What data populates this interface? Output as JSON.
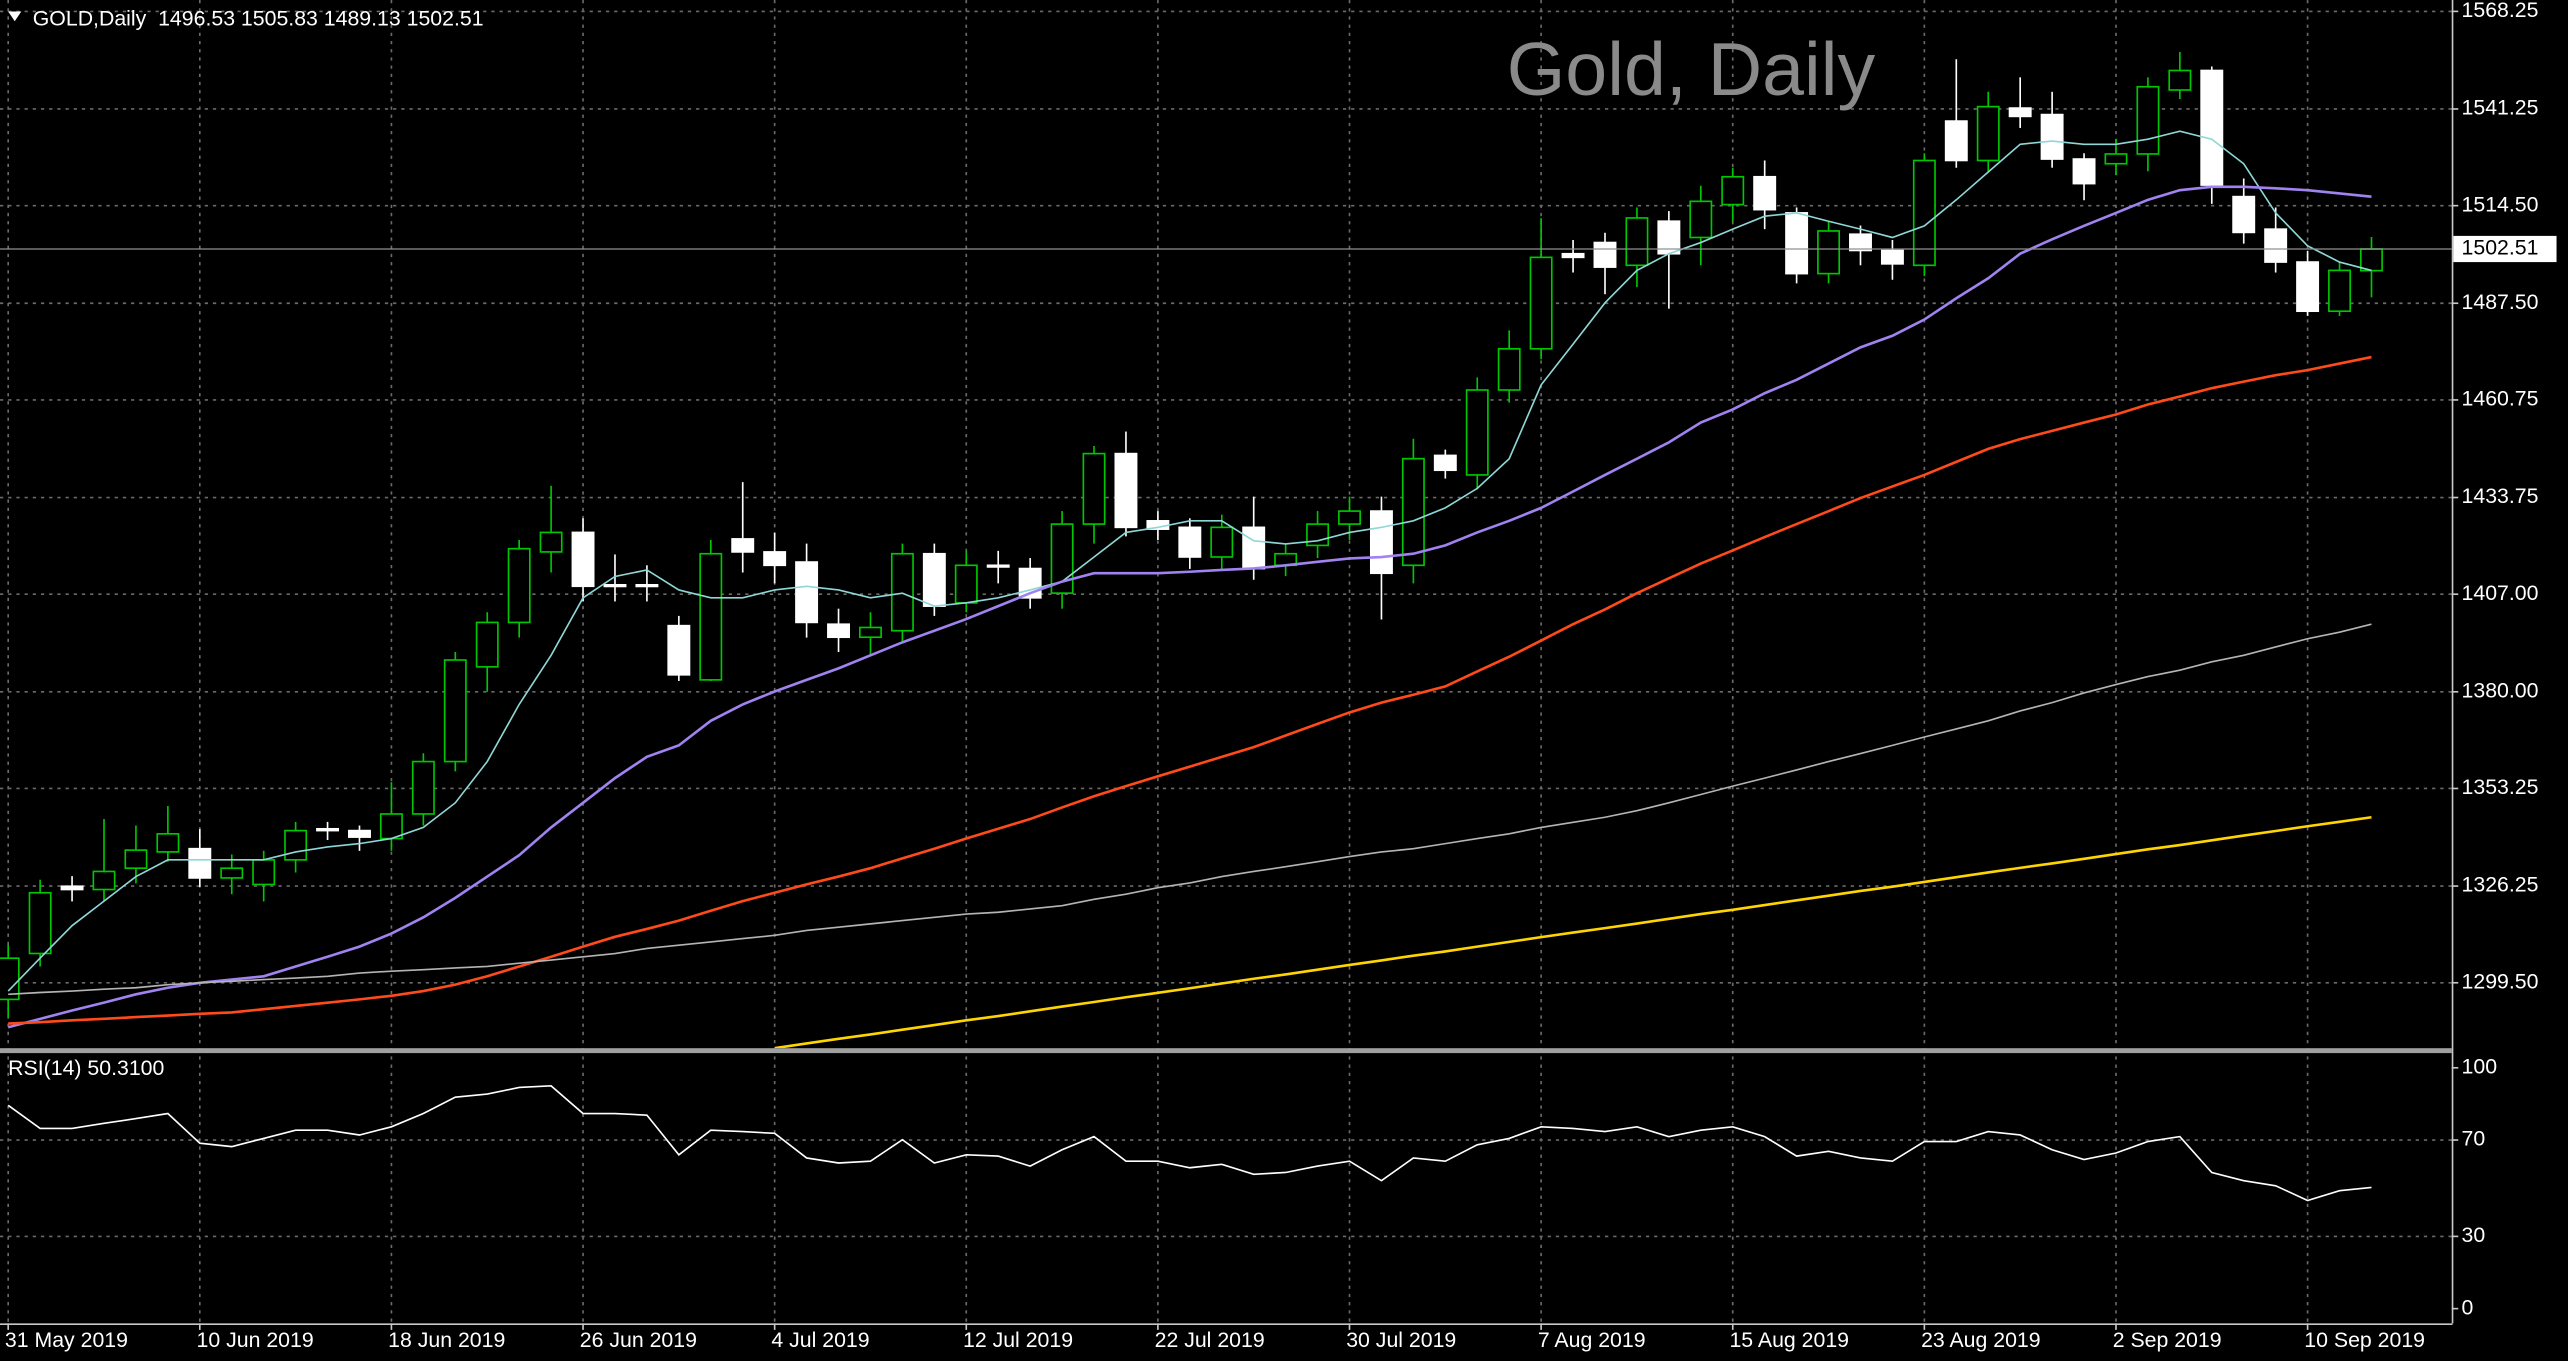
{
  "chart_data": {
    "type": "candlestick",
    "title": "Gold, Daily",
    "header": "GOLD,Daily  1496.53 1505.83 1489.13 1502.51",
    "categories": [
      "31 May 2019",
      null,
      null,
      null,
      null,
      null,
      "10 Jun 2019",
      null,
      null,
      null,
      null,
      null,
      "18 Jun 2019",
      null,
      null,
      null,
      null,
      null,
      "26 Jun 2019",
      null,
      null,
      null,
      null,
      null,
      "4 Jul 2019",
      null,
      null,
      null,
      null,
      null,
      "12 Jul 2019",
      null,
      null,
      null,
      null,
      null,
      "22 Jul 2019",
      null,
      null,
      null,
      null,
      null,
      "30 Jul 2019",
      null,
      null,
      null,
      null,
      null,
      "7 Aug 2019",
      null,
      null,
      null,
      null,
      null,
      "15 Aug 2019",
      null,
      null,
      null,
      null,
      null,
      "23 Aug 2019",
      null,
      null,
      null,
      null,
      null,
      "2 Sep 2019",
      null,
      null,
      null,
      null,
      null,
      "10 Sep 2019",
      null,
      null
    ],
    "open": [
      1294.9,
      1307.6,
      1326.2,
      1325.3,
      1331.2,
      1335.7,
      1336.6,
      1328.5,
      1326.7,
      1333.5,
      1342.1,
      1341.6,
      1339.4,
      1346.2,
      1360.7,
      1386.9,
      1399.2,
      1418.7,
      1424.1,
      1409.6,
      1409.6,
      1398.3,
      1383.3,
      1422.3,
      1418.7,
      1415.9,
      1398.7,
      1395.1,
      1396.9,
      1418.2,
      1404.6,
      1415.0,
      1414.1,
      1407.3,
      1426.4,
      1445.9,
      1427.3,
      1425.5,
      1417.3,
      1425.5,
      1415.0,
      1420.5,
      1426.4,
      1430.0,
      1415.0,
      1445.4,
      1440.0,
      1463.5,
      1474.9,
      1501.2,
      1504.3,
      1498.0,
      1510.2,
      1505.7,
      1514.8,
      1522.5,
      1512.5,
      1495.7,
      1506.6,
      1502.1,
      1498.0,
      1537.9,
      1527.0,
      1541.5,
      1539.7,
      1527.4,
      1526.1,
      1528.8,
      1546.5,
      1551.9,
      1517.0,
      1508.0,
      1498.9,
      1485.3,
      1496.53
    ],
    "high": [
      1310,
      1328,
      1329,
      1344.8,
      1343,
      1348.4,
      1342,
      1335,
      1336,
      1344,
      1344,
      1343,
      1355,
      1363,
      1391,
      1402,
      1422,
      1437,
      1428,
      1418,
      1415,
      1401,
      1422,
      1438,
      1424,
      1421,
      1403,
      1402,
      1421,
      1421,
      1419,
      1419,
      1417,
      1430,
      1448,
      1452,
      1430,
      1428,
      1429,
      1434,
      1421,
      1430,
      1434,
      1434,
      1450,
      1447,
      1467,
      1480,
      1511,
      1505,
      1507,
      1514,
      1513,
      1520,
      1525,
      1527,
      1514,
      1510,
      1509,
      1505,
      1529,
      1555,
      1546,
      1550,
      1546,
      1529,
      1533,
      1550,
      1557,
      1553,
      1522,
      1514,
      1502,
      1499,
      1505.83
    ],
    "low": [
      1290,
      1304,
      1322,
      1322,
      1327,
      1333,
      1326,
      1324,
      1322,
      1330,
      1339,
      1336,
      1336,
      1343,
      1358,
      1380,
      1395,
      1413,
      1405,
      1405,
      1405,
      1383,
      1383,
      1413,
      1410,
      1395,
      1391,
      1390,
      1394,
      1401,
      1402,
      1410,
      1403,
      1403,
      1421,
      1423,
      1422,
      1414,
      1414,
      1411,
      1412,
      1417,
      1422,
      1400,
      1410,
      1439,
      1436,
      1460,
      1472,
      1496,
      1490,
      1492,
      1486,
      1498,
      1510,
      1508,
      1493,
      1493,
      1498,
      1494,
      1495,
      1525,
      1524,
      1536,
      1525,
      1516,
      1523,
      1524,
      1544,
      1515,
      1504,
      1496,
      1484,
      1484,
      1489.13
    ],
    "close": [
      1306.3,
      1324.4,
      1325.3,
      1330.3,
      1336.2,
      1340.7,
      1328.5,
      1331.2,
      1333.5,
      1341.6,
      1341.6,
      1339.8,
      1346.2,
      1360.7,
      1388.8,
      1399.2,
      1419.6,
      1424.1,
      1409.2,
      1409.4,
      1409.4,
      1384.7,
      1418.2,
      1418.7,
      1415.0,
      1399.2,
      1395.1,
      1397.8,
      1418.2,
      1403.7,
      1415.0,
      1414.6,
      1406.0,
      1426.4,
      1445.9,
      1425.5,
      1425.0,
      1417.3,
      1425.5,
      1414.1,
      1418.2,
      1426.4,
      1430.0,
      1412.8,
      1444.5,
      1441.3,
      1463.5,
      1474.9,
      1500.2,
      1500.2,
      1497.5,
      1511.1,
      1501.2,
      1515.7,
      1522.5,
      1513.4,
      1495.7,
      1507.5,
      1502.1,
      1498.4,
      1527.0,
      1527.0,
      1541.9,
      1539.2,
      1527.4,
      1520.6,
      1528.8,
      1547.4,
      1551.9,
      1520.2,
      1507.1,
      1498.9,
      1485.3,
      1496.6,
      1502.51
    ],
    "up_color": "#00c800",
    "down_color": "#ffffff",
    "series": [
      {
        "color": "#8fd6d6",
        "values": [
          1297.2,
          1306.3,
          1315.3,
          1322.1,
          1328.9,
          1333.5,
          1333.5,
          1333.5,
          1333.5,
          1335.7,
          1337.1,
          1338.0,
          1339.4,
          1342.5,
          1349.3,
          1360.7,
          1376.5,
          1390.1,
          1406.0,
          1411.9,
          1413.7,
          1408.2,
          1406.0,
          1406.0,
          1408.2,
          1409.2,
          1408.2,
          1406.0,
          1407.3,
          1403.7,
          1404.6,
          1406.0,
          1408.2,
          1410.5,
          1417.3,
          1424.1,
          1425.5,
          1427.3,
          1427.3,
          1421.8,
          1420.9,
          1421.8,
          1424.1,
          1425.5,
          1427.3,
          1430.9,
          1436.3,
          1444.5,
          1464.9,
          1476.2,
          1487.6,
          1496.6,
          1501.2,
          1504.3,
          1508.0,
          1511.6,
          1512.5,
          1510.2,
          1508.0,
          1505.7,
          1508.9,
          1516.1,
          1523.8,
          1531.5,
          1532.4,
          1531.5,
          1531.5,
          1532.9,
          1535.1,
          1532.9,
          1526.1,
          1512.5,
          1503.4,
          1498.9,
          1496.6
        ]
      },
      {
        "color": "#a083f0",
        "values": [
          1287.2,
          1289.5,
          1291.8,
          1294.0,
          1296.3,
          1298.1,
          1299.5,
          1300.4,
          1301.3,
          1304.0,
          1306.7,
          1309.5,
          1313.1,
          1317.6,
          1323.0,
          1328.9,
          1334.8,
          1342.5,
          1349.3,
          1356.1,
          1362.0,
          1365.2,
          1372.0,
          1376.5,
          1380.1,
          1383.3,
          1386.5,
          1390.1,
          1393.7,
          1396.9,
          1400.1,
          1403.7,
          1407.3,
          1410.5,
          1412.8,
          1412.8,
          1412.8,
          1413.2,
          1413.7,
          1414.1,
          1415.0,
          1416.0,
          1416.9,
          1417.3,
          1418.2,
          1420.5,
          1424.1,
          1427.3,
          1430.9,
          1435.4,
          1440.0,
          1444.5,
          1449.0,
          1454.5,
          1458.1,
          1462.6,
          1466.3,
          1470.8,
          1475.3,
          1478.5,
          1483.0,
          1488.9,
          1494.4,
          1501.2,
          1505.2,
          1508.9,
          1512.5,
          1516.1,
          1518.8,
          1519.7,
          1519.7,
          1519.3,
          1518.8,
          1517.9,
          1517.0
        ]
      },
      {
        "color": "#ff4a1a",
        "values": [
          1288.2,
          1288.6,
          1289.1,
          1289.5,
          1290.0,
          1290.4,
          1290.9,
          1291.3,
          1292.2,
          1293.1,
          1294.0,
          1294.9,
          1295.9,
          1297.2,
          1299.0,
          1301.3,
          1304.0,
          1306.7,
          1309.5,
          1312.2,
          1314.4,
          1316.7,
          1319.4,
          1322.1,
          1324.4,
          1326.7,
          1328.9,
          1331.2,
          1333.9,
          1336.6,
          1339.4,
          1342.1,
          1344.8,
          1348.0,
          1351.1,
          1353.9,
          1356.6,
          1359.3,
          1362.0,
          1364.7,
          1367.9,
          1371.1,
          1374.3,
          1377.0,
          1379.2,
          1381.5,
          1385.6,
          1389.7,
          1394.2,
          1398.7,
          1402.8,
          1407.3,
          1411.4,
          1415.5,
          1419.1,
          1422.8,
          1426.4,
          1430.0,
          1433.6,
          1436.8,
          1440.0,
          1443.6,
          1447.2,
          1449.9,
          1452.2,
          1454.5,
          1456.7,
          1459.5,
          1461.7,
          1464.0,
          1465.8,
          1467.6,
          1469.0,
          1470.8,
          1472.6
        ]
      },
      {
        "color": "#b4b4b4",
        "values": [
          1296.3,
          1296.8,
          1297.2,
          1297.7,
          1298.1,
          1299.0,
          1299.5,
          1299.9,
          1300.4,
          1300.8,
          1301.3,
          1302.2,
          1302.7,
          1303.1,
          1303.6,
          1304.0,
          1304.9,
          1305.8,
          1306.7,
          1307.6,
          1309.0,
          1309.9,
          1310.8,
          1311.7,
          1312.6,
          1314.0,
          1314.9,
          1315.8,
          1316.7,
          1317.6,
          1318.5,
          1319.0,
          1319.9,
          1320.8,
          1322.6,
          1324.0,
          1325.8,
          1327.1,
          1328.9,
          1330.3,
          1331.6,
          1333.0,
          1334.4,
          1335.7,
          1336.6,
          1338.0,
          1339.4,
          1340.7,
          1342.5,
          1343.9,
          1345.3,
          1347.1,
          1349.3,
          1351.6,
          1353.9,
          1356.1,
          1358.4,
          1360.7,
          1362.9,
          1365.2,
          1367.5,
          1369.7,
          1372.0,
          1374.7,
          1377.0,
          1379.7,
          1382.0,
          1384.2,
          1386.0,
          1388.3,
          1390.1,
          1392.4,
          1394.7,
          1396.5,
          1398.7
        ]
      },
      {
        "color": "#ffd500",
        "values": [
          null,
          null,
          null,
          null,
          null,
          null,
          null,
          null,
          null,
          null,
          null,
          null,
          null,
          null,
          null,
          null,
          null,
          null,
          null,
          null,
          null,
          null,
          null,
          null,
          1281.4,
          1282.7,
          1284.0,
          1285.2,
          1286.5,
          1287.8,
          1289.1,
          1290.3,
          1291.6,
          1292.9,
          1294.2,
          1295.5,
          1296.7,
          1298.0,
          1299.3,
          1300.6,
          1301.8,
          1303.1,
          1304.4,
          1305.7,
          1307.0,
          1308.2,
          1309.5,
          1310.8,
          1312.1,
          1313.4,
          1314.6,
          1315.9,
          1317.2,
          1318.5,
          1319.7,
          1321.0,
          1322.3,
          1323.6,
          1324.9,
          1326.1,
          1327.4,
          1328.7,
          1330.0,
          1331.3,
          1332.5,
          1333.8,
          1335.1,
          1336.4,
          1337.6,
          1338.9,
          1340.2,
          1341.5,
          1342.8,
          1344.0,
          1345.3
        ]
      }
    ],
    "ylim": [
      1281.4,
      1571.4
    ],
    "yticks": [
      1568.25,
      1541.25,
      {
        "value": 1514.5,
        "label": "1514.50"
      },
      {
        "value": 1487.5,
        "label": "1487.50"
      },
      1460.75,
      1433.75,
      {
        "value": 1407,
        "label": "1407.00"
      },
      {
        "value": 1380,
        "label": "1380.00"
      },
      1353.25,
      1326.25,
      {
        "value": 1299.5,
        "label": "1299.50"
      }
    ],
    "last_price": 1502.51,
    "grid": true,
    "indicator": {
      "label": "RSI(14) 50.3100",
      "color": "#ffffff",
      "values": [
        84.4,
        74.8,
        74.8,
        76.9,
        78.9,
        81.0,
        68.7,
        67.3,
        70.7,
        74.1,
        74.1,
        72.1,
        75.5,
        81.0,
        87.8,
        89.1,
        91.8,
        92.5,
        81.0,
        81.0,
        80.3,
        63.9,
        74.1,
        73.5,
        72.8,
        62.6,
        60.5,
        61.2,
        70.1,
        60.5,
        63.9,
        63.3,
        59.2,
        66.0,
        71.4,
        61.2,
        61.2,
        58.5,
        59.9,
        55.8,
        56.5,
        59.2,
        61.2,
        53.1,
        62.6,
        61.2,
        68.0,
        70.7,
        75.5,
        74.8,
        73.5,
        75.5,
        71.4,
        74.1,
        75.5,
        71.4,
        63.3,
        65.3,
        62.6,
        61.2,
        69.4,
        69.4,
        73.5,
        72.1,
        66.0,
        61.9,
        64.6,
        69.4,
        71.4,
        56.5,
        53.1,
        51.0,
        44.9,
        49.0,
        50.31
      ],
      "ylim": [
        -6.1,
        106.1
      ],
      "yticks": [
        0,
        30,
        70,
        100
      ]
    }
  }
}
